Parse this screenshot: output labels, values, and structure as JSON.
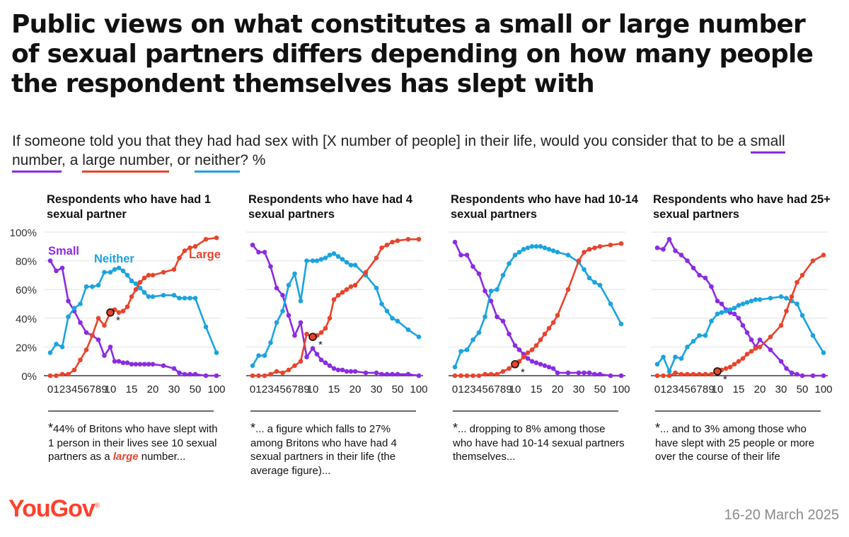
{
  "title": "Public views on what constitutes a small or large number of sexual partners differs depending on how many people the respondent themselves has slept with",
  "subtitle": {
    "part1": "If someone told you that they had had sex with [X number of people] in their life, would you consider that to be a ",
    "small": "small number",
    "sep1": ", a ",
    "large": "large number",
    "sep2": ", or ",
    "neither": "neither",
    "part2": "? %"
  },
  "colors": {
    "small": "#8b2be2",
    "large": "#e8442c",
    "neither": "#1aa3e0",
    "grid": "#e2e2e2",
    "axis": "#111111"
  },
  "panels": [
    {
      "title": "Respondents who have had 1 sexual partner",
      "note": {
        "star": "*",
        "text1": "44% of Britons who have slept with 1 person in their lives see 10 sexual partners as a ",
        "highlight": "large",
        "text2": " number..."
      }
    },
    {
      "title": "Respondents who have had 4 sexual partners",
      "note": {
        "star": "*",
        "text1": "... a figure which falls to 27% among Britons who have had 4 sexual partners in their life (the average figure)...",
        "highlight": "",
        "text2": ""
      }
    },
    {
      "title": "Respondents who have had 10-14 sexual partners",
      "note": {
        "star": "*",
        "text1": "... dropping to 8% among those who have had 10-14 sexual partners themselves...",
        "highlight": "",
        "text2": ""
      }
    },
    {
      "title": "Respondents who have had 25+ sexual partners",
      "note": {
        "star": "*",
        "text1": "... and to 3% among those who have slept with 25 people or more over the course of their life",
        "highlight": "",
        "text2": ""
      }
    }
  ],
  "footer": {
    "logo": "YouGov",
    "logo_mark": "®",
    "date": "16-20 March 2025"
  },
  "chart_data": [
    {
      "type": "line",
      "title": "Respondents who have had 1 sexual partner",
      "x_labels": [
        "0",
        "1",
        "2",
        "3",
        "4",
        "5",
        "6",
        "7",
        "8",
        "9",
        "10",
        "15",
        "20",
        "30",
        "50",
        "100"
      ],
      "x": [
        0,
        1,
        2,
        3,
        4,
        5,
        6,
        7,
        8,
        9,
        10,
        11,
        12,
        13,
        14,
        15,
        16,
        17,
        18,
        19,
        20,
        25,
        30,
        35,
        40,
        45,
        50,
        75,
        100
      ],
      "ylim": [
        0,
        100
      ],
      "y_ticks": [
        "0%",
        "20%",
        "40%",
        "60%",
        "80%",
        "100%"
      ],
      "grid": true,
      "series_labels": [
        {
          "series": "Small",
          "text": "Small"
        },
        {
          "series": "Neither",
          "text": "Neither"
        },
        {
          "series": "Large",
          "text": "Large"
        }
      ],
      "series": [
        {
          "name": "Small",
          "values": [
            80,
            73,
            75,
            52,
            45,
            37,
            30,
            28,
            25,
            14,
            20,
            10,
            10,
            9,
            9,
            8,
            8,
            8,
            8,
            8,
            8,
            7,
            5,
            2,
            1,
            1,
            1,
            0,
            0
          ]
        },
        {
          "name": "Neither",
          "values": [
            16,
            22,
            20,
            41,
            47,
            50,
            62,
            62,
            63,
            72,
            72,
            74,
            75,
            73,
            70,
            66,
            64,
            61,
            58,
            55,
            55,
            56,
            56,
            54,
            54,
            54,
            54,
            34,
            16
          ]
        },
        {
          "name": "Large",
          "values": [
            0,
            0,
            1,
            1,
            4,
            11,
            18,
            28,
            40,
            35,
            44,
            46,
            44,
            45,
            48,
            55,
            60,
            65,
            68,
            70,
            70,
            72,
            74,
            82,
            87,
            89,
            90,
            95,
            96
          ]
        }
      ],
      "highlight": {
        "series": "Large",
        "x": 10,
        "value": 44,
        "label": "*"
      }
    },
    {
      "type": "line",
      "title": "Respondents who have had 4 sexual partners",
      "x_labels": [
        "0",
        "1",
        "2",
        "3",
        "4",
        "5",
        "6",
        "7",
        "8",
        "9",
        "10",
        "15",
        "20",
        "30",
        "50",
        "100"
      ],
      "x": [
        0,
        1,
        2,
        3,
        4,
        5,
        6,
        7,
        8,
        9,
        10,
        11,
        12,
        13,
        14,
        15,
        16,
        17,
        18,
        19,
        20,
        25,
        30,
        35,
        40,
        45,
        50,
        75,
        100
      ],
      "ylim": [
        0,
        100
      ],
      "y_ticks": [
        "0%",
        "20%",
        "40%",
        "60%",
        "80%",
        "100%"
      ],
      "grid": true,
      "series": [
        {
          "name": "Small",
          "values": [
            91,
            86,
            86,
            76,
            61,
            56,
            42,
            28,
            37,
            13,
            19,
            15,
            11,
            9,
            7,
            5,
            4,
            4,
            3,
            3,
            3,
            2,
            2,
            1,
            1,
            1,
            1,
            1,
            0
          ]
        },
        {
          "name": "Neither",
          "values": [
            7,
            14,
            14,
            23,
            37,
            45,
            63,
            71,
            52,
            80,
            80,
            80,
            81,
            82,
            84,
            85,
            83,
            81,
            79,
            77,
            77,
            70,
            61,
            50,
            45,
            40,
            38,
            32,
            27
          ]
        },
        {
          "name": "Large",
          "values": [
            0,
            0,
            0,
            1,
            3,
            2,
            4,
            7,
            10,
            29,
            27,
            28,
            30,
            33,
            40,
            53,
            56,
            58,
            60,
            62,
            63,
            72,
            82,
            89,
            91,
            93,
            94,
            95,
            95
          ]
        }
      ],
      "highlight": {
        "series": "Large",
        "x": 10,
        "value": 27,
        "label": "*"
      }
    },
    {
      "type": "line",
      "title": "Respondents who have had 10-14 sexual partners",
      "x_labels": [
        "0",
        "1",
        "2",
        "3",
        "4",
        "5",
        "6",
        "7",
        "8",
        "9",
        "10",
        "15",
        "20",
        "30",
        "50",
        "100"
      ],
      "x": [
        0,
        1,
        2,
        3,
        4,
        5,
        6,
        7,
        8,
        9,
        10,
        11,
        12,
        13,
        14,
        15,
        16,
        17,
        18,
        19,
        20,
        25,
        30,
        35,
        40,
        45,
        50,
        75,
        100
      ],
      "ylim": [
        0,
        100
      ],
      "y_ticks": [
        "0%",
        "20%",
        "40%",
        "60%",
        "80%",
        "100%"
      ],
      "grid": true,
      "series": [
        {
          "name": "Small",
          "values": [
            93,
            84,
            84,
            76,
            71,
            59,
            52,
            41,
            38,
            29,
            21,
            18,
            15,
            12,
            10,
            9,
            8,
            7,
            6,
            5,
            2,
            2,
            2,
            2,
            2,
            1,
            1,
            0,
            0
          ]
        },
        {
          "name": "Neither",
          "values": [
            6,
            17,
            18,
            25,
            30,
            41,
            59,
            60,
            70,
            78,
            84,
            86,
            88,
            89,
            90,
            90,
            90,
            89,
            88,
            87,
            86,
            84,
            79,
            74,
            68,
            65,
            63,
            50,
            36
          ]
        },
        {
          "name": "Large",
          "values": [
            0,
            0,
            0,
            0,
            0,
            1,
            1,
            1,
            3,
            5,
            8,
            10,
            13,
            16,
            18,
            21,
            25,
            29,
            33,
            37,
            42,
            60,
            80,
            86,
            88,
            89,
            90,
            91,
            92
          ]
        }
      ],
      "highlight": {
        "series": "Large",
        "x": 10,
        "value": 8,
        "label": "*"
      }
    },
    {
      "type": "line",
      "title": "Respondents who have had 25+ sexual partners",
      "x_labels": [
        "0",
        "1",
        "2",
        "3",
        "4",
        "5",
        "6",
        "7",
        "8",
        "9",
        "10",
        "15",
        "20",
        "30",
        "50",
        "100"
      ],
      "x": [
        0,
        1,
        2,
        3,
        4,
        5,
        6,
        7,
        8,
        9,
        10,
        11,
        12,
        13,
        14,
        15,
        16,
        17,
        18,
        19,
        20,
        25,
        30,
        35,
        40,
        45,
        50,
        75,
        100
      ],
      "ylim": [
        0,
        100
      ],
      "y_ticks": [
        "0%",
        "20%",
        "40%",
        "60%",
        "80%",
        "100%"
      ],
      "grid": true,
      "series": [
        {
          "name": "Small",
          "values": [
            89,
            88,
            95,
            87,
            84,
            80,
            75,
            70,
            68,
            62,
            52,
            50,
            46,
            44,
            43,
            40,
            35,
            30,
            25,
            20,
            25,
            18,
            10,
            5,
            2,
            1,
            0,
            0,
            0
          ]
        },
        {
          "name": "Neither",
          "values": [
            8,
            13,
            3,
            13,
            12,
            20,
            24,
            28,
            28,
            38,
            43,
            44,
            45,
            46,
            47,
            49,
            50,
            51,
            52,
            53,
            53,
            54,
            55,
            54,
            52,
            50,
            42,
            28,
            16
          ]
        },
        {
          "name": "Large",
          "values": [
            0,
            0,
            0,
            2,
            1,
            1,
            1,
            1,
            1,
            1,
            3,
            4,
            5,
            6,
            8,
            10,
            12,
            15,
            17,
            19,
            20,
            27,
            35,
            45,
            55,
            65,
            70,
            80,
            84
          ]
        }
      ],
      "highlight": {
        "series": "Large",
        "x": 10,
        "value": 3,
        "label": "*"
      }
    }
  ]
}
